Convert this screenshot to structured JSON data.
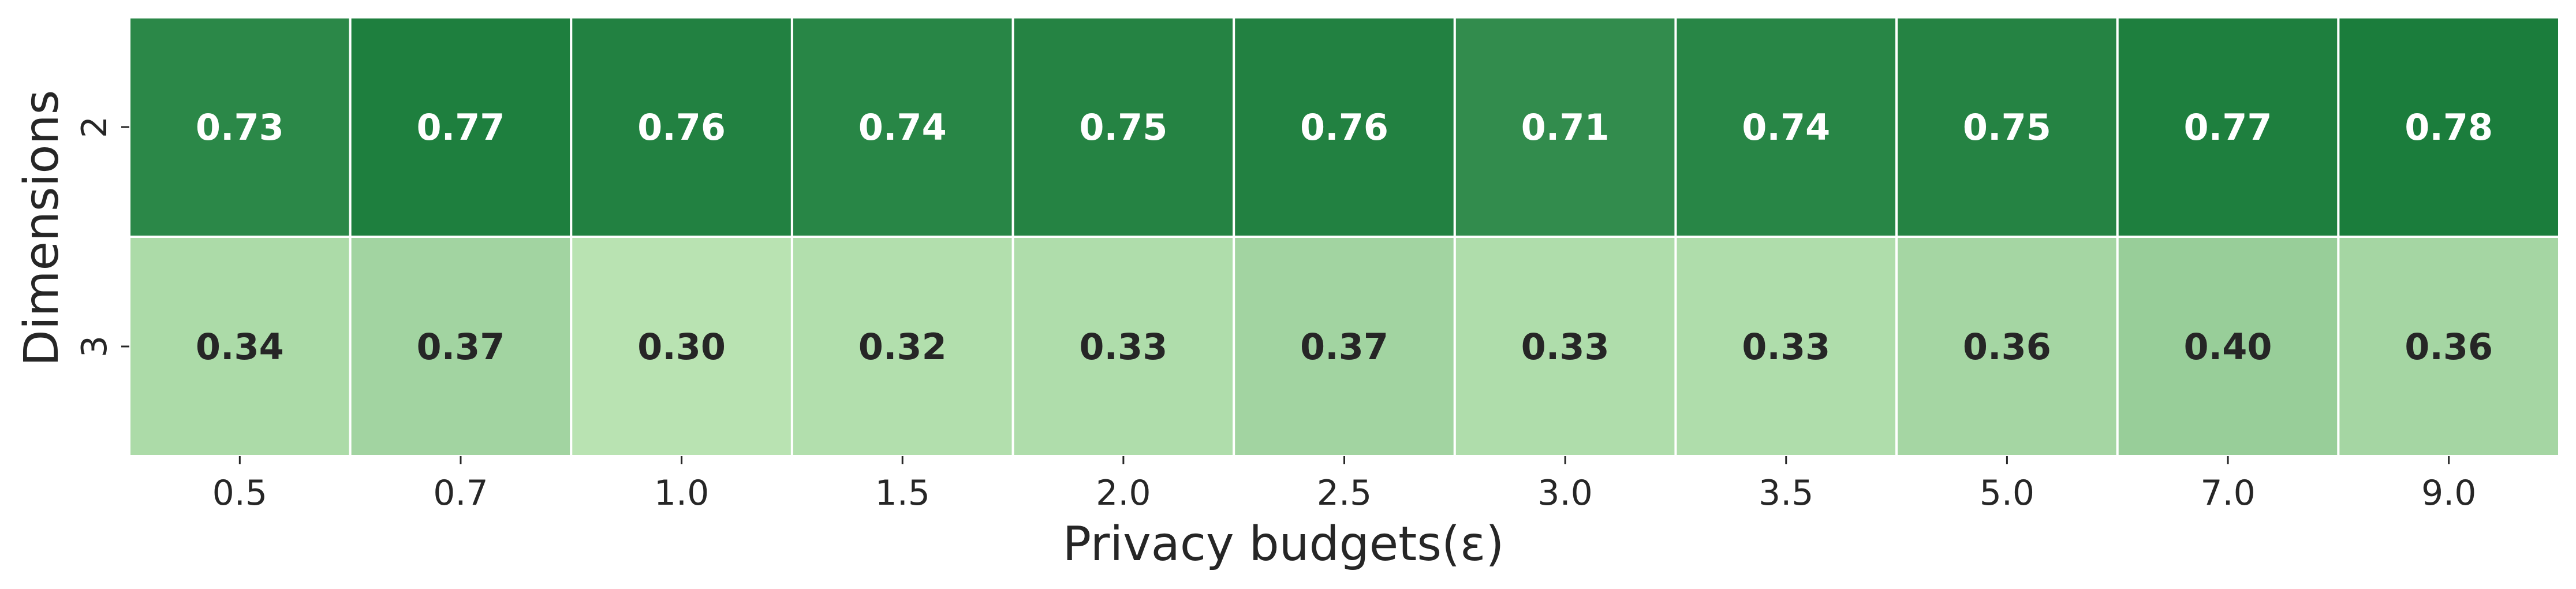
{
  "chart_data": {
    "type": "heatmap",
    "title": "",
    "xlabel": "Privacy budgets(ε)",
    "ylabel": "Dimensions",
    "x_categories": [
      "0.5",
      "0.7",
      "1.0",
      "1.5",
      "2.0",
      "2.5",
      "3.0",
      "3.5",
      "5.0",
      "7.0",
      "9.0"
    ],
    "y_categories": [
      "2",
      "3"
    ],
    "values": [
      [
        0.73,
        0.77,
        0.76,
        0.74,
        0.75,
        0.76,
        0.71,
        0.74,
        0.75,
        0.77,
        0.78
      ],
      [
        0.34,
        0.37,
        0.3,
        0.32,
        0.33,
        0.37,
        0.33,
        0.33,
        0.36,
        0.4,
        0.36
      ]
    ],
    "value_format": "2 decimals",
    "colormap": "Greens",
    "color_range": [
      0.3,
      0.78
    ],
    "colors": {
      "high": "#1b7d3c",
      "low": "#b9e3b2",
      "label_on_dark": "#ffffff",
      "label_on_light": "#262626",
      "cell_border": "#ffffff"
    },
    "grid": false,
    "legend": "none"
  }
}
